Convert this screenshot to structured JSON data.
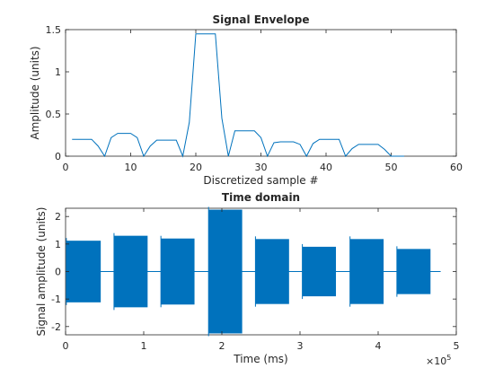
{
  "chart_data": [
    {
      "type": "line",
      "title": "Signal Envelope",
      "xlabel": "Discretized sample #",
      "ylabel": "Amplitude (units)",
      "xlim": [
        0,
        60
      ],
      "ylim": [
        0,
        1.5
      ],
      "xticks": [
        "0",
        "10",
        "20",
        "30",
        "40",
        "50",
        "60"
      ],
      "yticks": [
        "0",
        "0.5",
        "1",
        "1.5"
      ],
      "grid": false,
      "color": "#0072bd",
      "x": [
        1,
        2,
        3,
        4,
        5,
        6,
        7,
        8,
        9,
        10,
        11,
        12,
        13,
        14,
        15,
        16,
        17,
        18,
        19,
        20,
        21,
        22,
        23,
        24,
        25,
        26,
        27,
        28,
        29,
        30,
        31,
        32,
        33,
        34,
        35,
        36,
        37,
        38,
        39,
        40,
        41,
        42,
        43,
        44,
        45,
        46,
        47,
        48,
        49,
        50,
        51,
        52
      ],
      "y": [
        0.2,
        0.2,
        0.2,
        0.2,
        0.12,
        0,
        0.22,
        0.27,
        0.27,
        0.27,
        0.22,
        0,
        0.12,
        0.19,
        0.19,
        0.19,
        0.19,
        0,
        0.4,
        1.45,
        1.45,
        1.45,
        1.45,
        0.45,
        0,
        0.3,
        0.3,
        0.3,
        0.3,
        0.22,
        0,
        0.16,
        0.17,
        0.17,
        0.17,
        0.14,
        0,
        0.15,
        0.2,
        0.2,
        0.2,
        0.2,
        0,
        0.09,
        0.14,
        0.14,
        0.14,
        0.14,
        0.08,
        0,
        0,
        0
      ]
    },
    {
      "type": "area",
      "title": "Time domain",
      "xlabel": "Time (ms)",
      "ylabel": "Signal amplitude (units)",
      "xlim": [
        0,
        5
      ],
      "ylim": [
        -2.3,
        2.3
      ],
      "x_exponent": "×10",
      "x_exponent_power": "5",
      "xticks": [
        "0",
        "1",
        "2",
        "3",
        "4",
        "5"
      ],
      "yticks": [
        "-2",
        "-1",
        "0",
        "1",
        "2"
      ],
      "grid": false,
      "color": "#0072bd",
      "bursts": [
        {
          "start": 0.01,
          "end": 0.45,
          "amp": 1.12
        },
        {
          "start": 0.62,
          "end": 1.05,
          "amp": 1.3
        },
        {
          "start": 1.22,
          "end": 1.65,
          "amp": 1.2
        },
        {
          "start": 1.83,
          "end": 2.26,
          "amp": 2.25
        },
        {
          "start": 2.43,
          "end": 2.86,
          "amp": 1.18
        },
        {
          "start": 3.03,
          "end": 3.46,
          "amp": 0.9
        },
        {
          "start": 3.64,
          "end": 4.07,
          "amp": 1.18
        },
        {
          "start": 4.24,
          "end": 4.67,
          "amp": 0.82
        }
      ],
      "signal_end": 4.8
    }
  ]
}
